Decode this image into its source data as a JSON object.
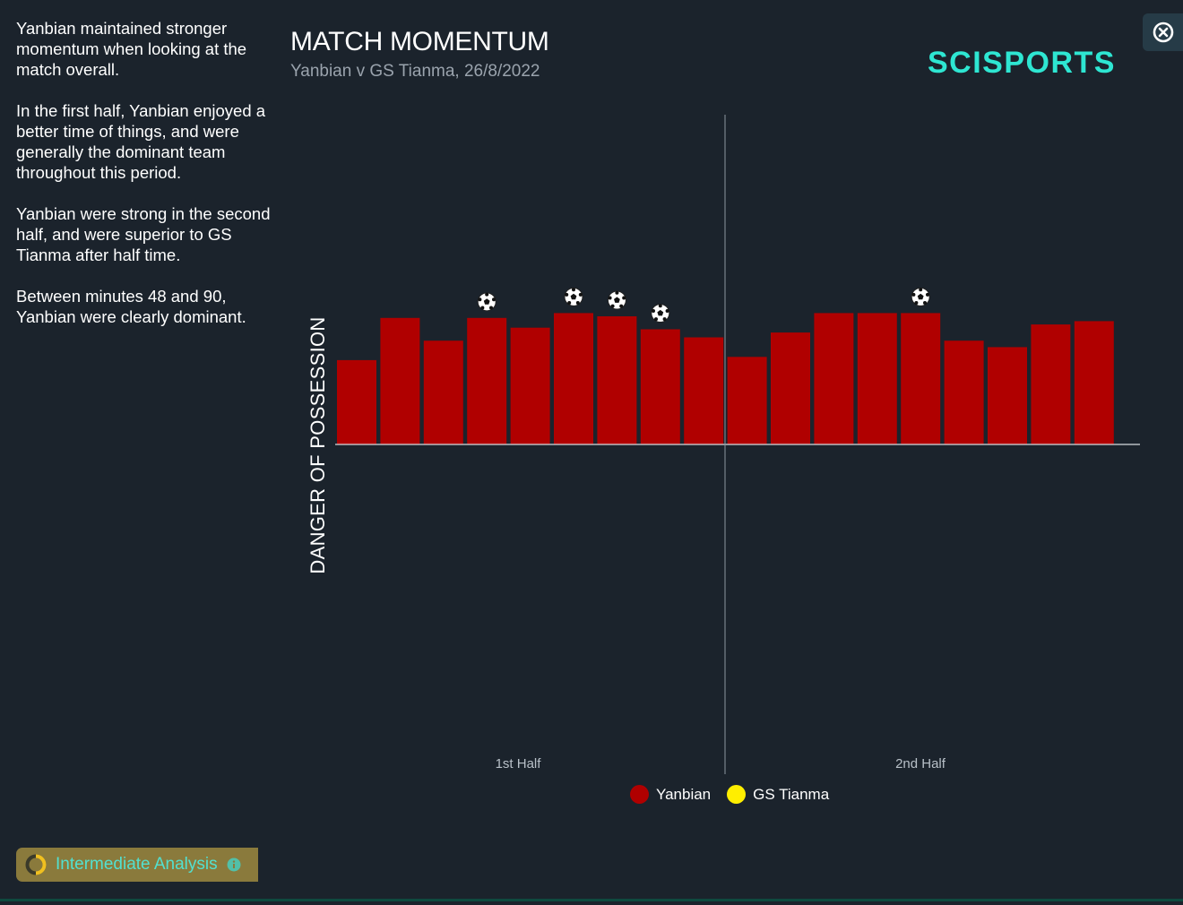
{
  "summary": {
    "paragraphs": [
      "Yanbian maintained stronger momentum when looking at the match overall.",
      "In the first half, Yanbian enjoyed a better time of things, and were generally the dominant team throughout this period.",
      "Yanbian were strong in the second half, and were superior to GS Tianma after half time.",
      "Between minutes 48 and 90, Yanbian were clearly dominant."
    ]
  },
  "header": {
    "title": "MATCH MOMENTUM",
    "subtitle": "Yanbian v GS Tianma, 26/8/2022",
    "logo_text": "SCISPORTS",
    "close_icon": "close-icon"
  },
  "colors": {
    "yanbian": "#b00000",
    "gs_tianma": "#ffee00",
    "logo": "#2ee6d2",
    "accent": "#52e0d0"
  },
  "chart_data": {
    "type": "bar",
    "ylabel": "DANGER OF POSSESSION",
    "halves": [
      "1st Half",
      "2nd Half"
    ],
    "ylim": [
      -100,
      100
    ],
    "series": [
      {
        "name": "Yanbian",
        "color": "#b00000",
        "values": [
          52,
          78,
          64,
          78,
          72,
          81,
          79,
          71,
          66,
          54,
          69,
          81,
          81,
          81,
          64,
          60,
          74,
          76
        ]
      },
      {
        "name": "GS Tianma",
        "color": "#ffee00",
        "values": [
          0,
          0,
          0,
          0,
          0,
          0,
          0,
          0,
          0,
          0,
          0,
          0,
          0,
          0,
          0,
          0,
          0,
          0
        ]
      }
    ],
    "goals": [
      {
        "team": "Yanbian",
        "period": 4
      },
      {
        "team": "Yanbian",
        "period": 6
      },
      {
        "team": "Yanbian",
        "period": 7
      },
      {
        "team": "Yanbian",
        "period": 8
      },
      {
        "team": "Yanbian",
        "period": 14
      }
    ],
    "legend": [
      "Yanbian",
      "GS Tianma"
    ]
  },
  "footer": {
    "analysis_label": "Intermediate Analysis",
    "info_icon": "info-icon"
  }
}
